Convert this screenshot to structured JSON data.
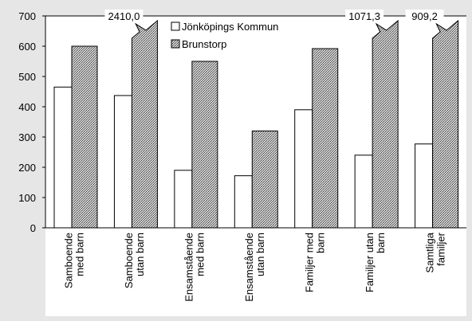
{
  "chart_data": {
    "type": "bar",
    "categories": [
      "Samboende\nmed barn",
      "Samboende\nutan barn",
      "Ensamstående\nmed barn",
      "Ensamstående\nutan barn",
      "Familjer med\nbarn",
      "Familjer utan\nbarn",
      "Samtliga\nfamiljer"
    ],
    "series": [
      {
        "name": "Jönköpings Kommun",
        "color": "#ffffff",
        "values": [
          465,
          437,
          190,
          172,
          390,
          240,
          277
        ]
      },
      {
        "name": "Brunstorp",
        "color": "#9a9a9a",
        "values": [
          600,
          2410.0,
          550,
          320,
          592,
          1071.3,
          909.2
        ],
        "value_labels": [
          null,
          "2410,0",
          null,
          null,
          null,
          "1071,3",
          "909,2"
        ]
      }
    ],
    "ylim": [
      0,
      700
    ],
    "yticks": [
      0,
      100,
      200,
      300,
      400,
      500,
      600,
      700
    ],
    "legend": "top-center"
  }
}
